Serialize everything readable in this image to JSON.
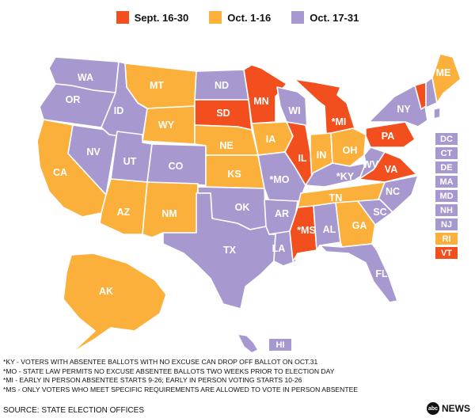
{
  "legend": {
    "items": [
      {
        "label": "Sept. 16-30",
        "color": "#f24e1e"
      },
      {
        "label": "Oct. 1-16",
        "color": "#fbb03b"
      },
      {
        "label": "Oct. 17-31",
        "color": "#a799cf"
      }
    ]
  },
  "colors": {
    "sept": "#f24e1e",
    "oct1": "#fbb03b",
    "oct17": "#a799cf",
    "border": "#ffffff"
  },
  "states": {
    "WA": {
      "label": "WA",
      "period": "oct17"
    },
    "OR": {
      "label": "OR",
      "period": "oct17"
    },
    "CA": {
      "label": "CA",
      "period": "oct1"
    },
    "NV": {
      "label": "NV",
      "period": "oct17"
    },
    "ID": {
      "label": "ID",
      "period": "oct17"
    },
    "MT": {
      "label": "MT",
      "period": "oct1"
    },
    "WY": {
      "label": "WY",
      "period": "oct1"
    },
    "UT": {
      "label": "UT",
      "period": "oct17"
    },
    "AZ": {
      "label": "AZ",
      "period": "oct1"
    },
    "CO": {
      "label": "CO",
      "period": "oct17"
    },
    "NM": {
      "label": "NM",
      "period": "oct1"
    },
    "ND": {
      "label": "ND",
      "period": "oct17"
    },
    "SD": {
      "label": "SD",
      "period": "sept"
    },
    "NE": {
      "label": "NE",
      "period": "oct1"
    },
    "KS": {
      "label": "KS",
      "period": "oct1"
    },
    "OK": {
      "label": "OK",
      "period": "oct17"
    },
    "TX": {
      "label": "TX",
      "period": "oct17"
    },
    "MN": {
      "label": "MN",
      "period": "sept"
    },
    "IA": {
      "label": "IA",
      "period": "oct1"
    },
    "MO": {
      "label": "*MO",
      "period": "oct17"
    },
    "AR": {
      "label": "AR",
      "period": "oct17"
    },
    "LA": {
      "label": "LA",
      "period": "oct17"
    },
    "WI": {
      "label": "WI",
      "period": "oct17"
    },
    "IL": {
      "label": "IL",
      "period": "sept"
    },
    "MI": {
      "label": "*MI",
      "period": "sept"
    },
    "IN": {
      "label": "IN",
      "period": "oct1"
    },
    "OH": {
      "label": "OH",
      "period": "oct1"
    },
    "KY": {
      "label": "*KY",
      "period": "oct17"
    },
    "TN": {
      "label": "TN",
      "period": "oct1"
    },
    "MS": {
      "label": "*MS",
      "period": "sept"
    },
    "AL": {
      "label": "AL",
      "period": "oct17"
    },
    "GA": {
      "label": "GA",
      "period": "oct1"
    },
    "FL": {
      "label": "FL",
      "period": "oct17"
    },
    "SC": {
      "label": "SC",
      "period": "oct17"
    },
    "NC": {
      "label": "NC",
      "period": "oct17"
    },
    "VA": {
      "label": "VA",
      "period": "sept"
    },
    "WV": {
      "label": "WV",
      "period": "oct17"
    },
    "PA": {
      "label": "PA",
      "period": "sept"
    },
    "NY": {
      "label": "NY",
      "period": "oct17"
    },
    "ME": {
      "label": "ME",
      "period": "oct1"
    },
    "NE_VT": {
      "label": "VT",
      "period": "sept"
    },
    "NE_NH": {
      "label": "NH",
      "period": "oct17"
    },
    "AK": {
      "label": "AK",
      "period": "oct1"
    },
    "HI": {
      "label": "HI",
      "period": "oct17"
    }
  },
  "small_states": [
    {
      "label": "DC",
      "period": "oct17"
    },
    {
      "label": "CT",
      "period": "oct17"
    },
    {
      "label": "DE",
      "period": "oct17"
    },
    {
      "label": "MA",
      "period": "oct17"
    },
    {
      "label": "MD",
      "period": "oct17"
    },
    {
      "label": "NH",
      "period": "oct17"
    },
    {
      "label": "NJ",
      "period": "oct17"
    },
    {
      "label": "RI",
      "period": "oct1"
    },
    {
      "label": "VT",
      "period": "sept"
    }
  ],
  "notes": [
    "*KY - VOTERS WITH ABSENTEE BALLOTS WITH NO EXCUSE CAN DROP OFF BALLOT ON OCT.31",
    "*MO - STATE LAW PERMITS NO EXCUSE ABSENTEE BALLOTS TWO WEEKS PRIOR TO ELECTION DAY",
    "*MI - EARLY IN PERSON ABSENTEE STARTS 9-26; EARLY IN PERSON VOTING STARTS 10-26",
    "*MS - ONLY VOTERS WHO MEET SPECIFIC REQUIREMENTS ARE ALLOWED TO VOTE IN PERSON ABSENTEE"
  ],
  "source": "SOURCE: STATE ELECTION OFFICES",
  "logo": {
    "mark": "abc",
    "text": "NEWS"
  }
}
